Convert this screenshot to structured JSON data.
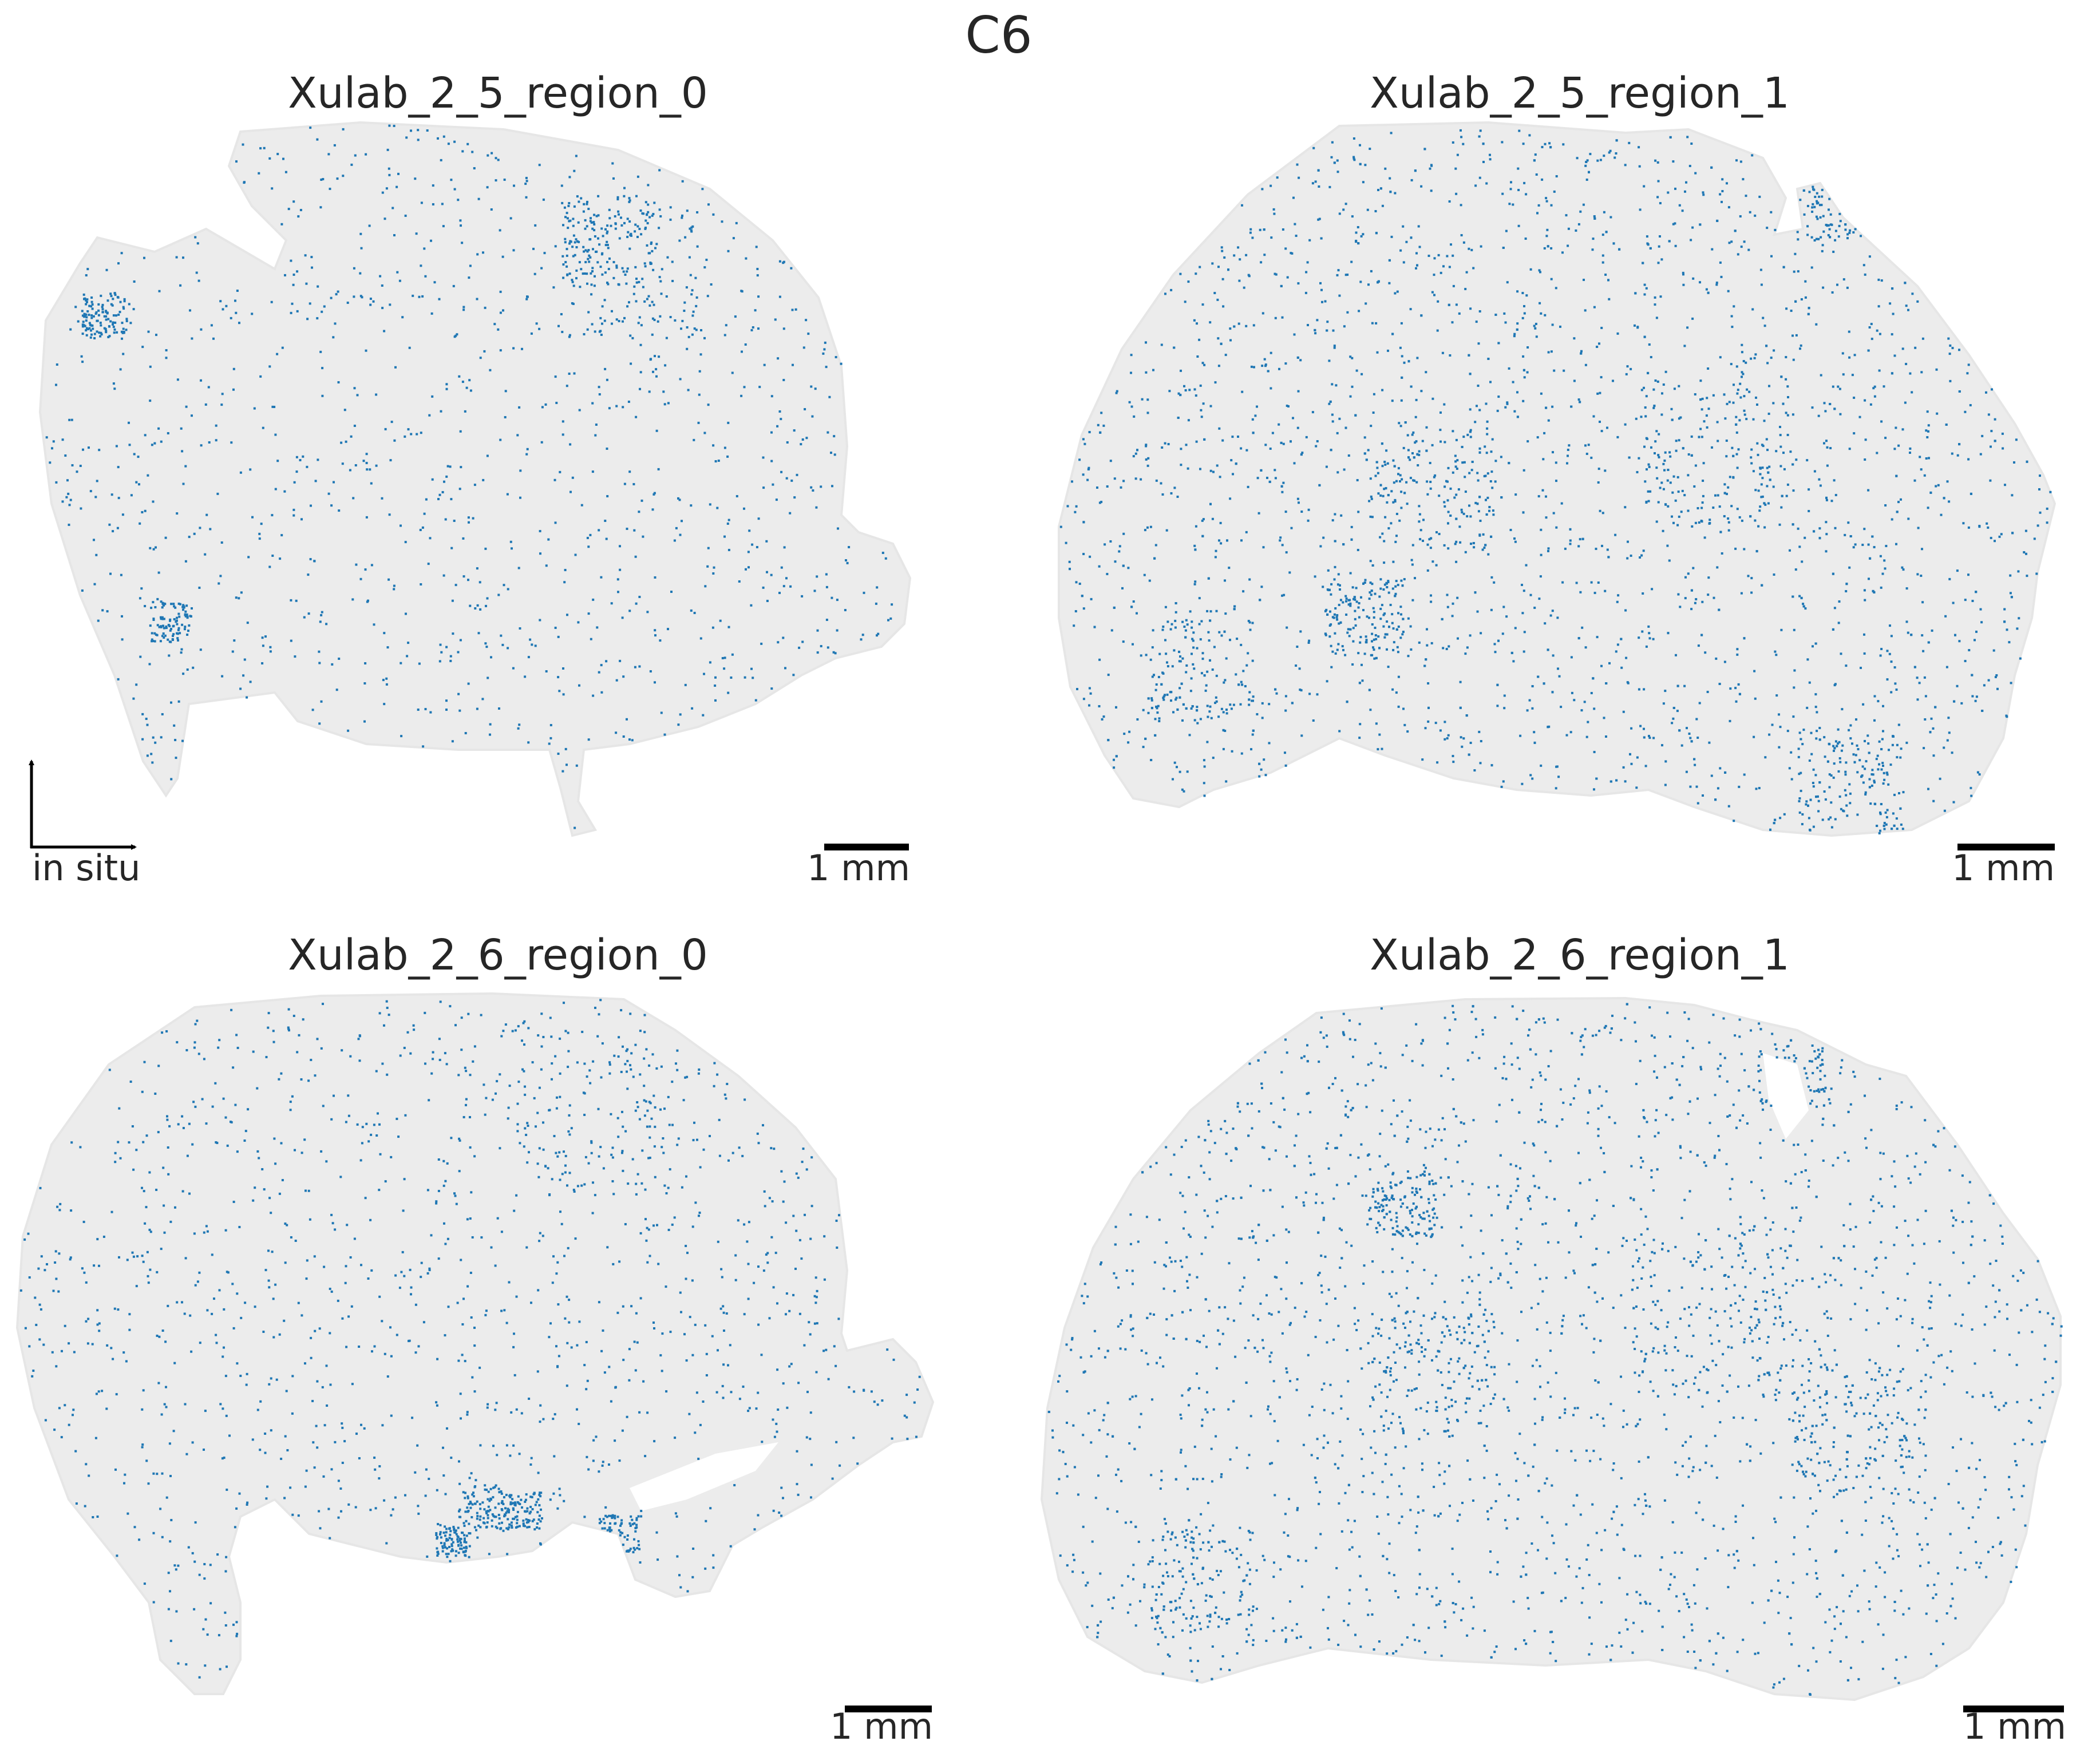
{
  "figure": {
    "title": "C6"
  },
  "chart_data": [
    {
      "type": "scatter",
      "title": "Xulab_2_5_region_0",
      "background_color": "#e6e6e6",
      "highlight_color": "#1f77b4",
      "scale_bar_label": "1 mm",
      "axis_indicator_label": "in situ",
      "axes_visible": false,
      "grid": false
    },
    {
      "type": "scatter",
      "title": "Xulab_2_5_region_1",
      "background_color": "#e6e6e6",
      "highlight_color": "#1f77b4",
      "scale_bar_label": "1 mm",
      "axes_visible": false,
      "grid": false
    },
    {
      "type": "scatter",
      "title": "Xulab_2_6_region_0",
      "background_color": "#e6e6e6",
      "highlight_color": "#1f77b4",
      "scale_bar_label": "1 mm",
      "axes_visible": false,
      "grid": false
    },
    {
      "type": "scatter",
      "title": "Xulab_2_6_region_1",
      "background_color": "#e6e6e6",
      "highlight_color": "#1f77b4",
      "scale_bar_label": "1 mm",
      "axes_visible": false,
      "grid": false
    }
  ]
}
